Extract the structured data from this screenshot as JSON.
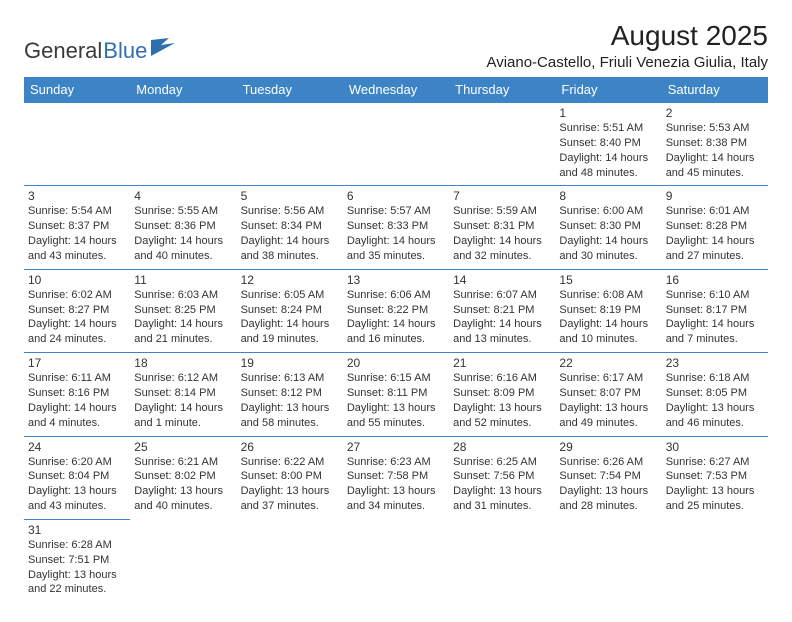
{
  "logo": {
    "text1": "General",
    "text2": "Blue"
  },
  "title": "August 2025",
  "location": "Aviano-Castello, Friuli Venezia Giulia, Italy",
  "colors": {
    "header_bg": "#3d84c6",
    "header_text": "#ffffff",
    "cell_border": "#3d84c6",
    "logo_blue": "#2f6fb0",
    "text": "#333333",
    "background": "#ffffff"
  },
  "weekdays": [
    "Sunday",
    "Monday",
    "Tuesday",
    "Wednesday",
    "Thursday",
    "Friday",
    "Saturday"
  ],
  "weeks": [
    [
      null,
      null,
      null,
      null,
      null,
      {
        "d": "1",
        "sr": "Sunrise: 5:51 AM",
        "ss": "Sunset: 8:40 PM",
        "dl1": "Daylight: 14 hours",
        "dl2": "and 48 minutes."
      },
      {
        "d": "2",
        "sr": "Sunrise: 5:53 AM",
        "ss": "Sunset: 8:38 PM",
        "dl1": "Daylight: 14 hours",
        "dl2": "and 45 minutes."
      }
    ],
    [
      {
        "d": "3",
        "sr": "Sunrise: 5:54 AM",
        "ss": "Sunset: 8:37 PM",
        "dl1": "Daylight: 14 hours",
        "dl2": "and 43 minutes."
      },
      {
        "d": "4",
        "sr": "Sunrise: 5:55 AM",
        "ss": "Sunset: 8:36 PM",
        "dl1": "Daylight: 14 hours",
        "dl2": "and 40 minutes."
      },
      {
        "d": "5",
        "sr": "Sunrise: 5:56 AM",
        "ss": "Sunset: 8:34 PM",
        "dl1": "Daylight: 14 hours",
        "dl2": "and 38 minutes."
      },
      {
        "d": "6",
        "sr": "Sunrise: 5:57 AM",
        "ss": "Sunset: 8:33 PM",
        "dl1": "Daylight: 14 hours",
        "dl2": "and 35 minutes."
      },
      {
        "d": "7",
        "sr": "Sunrise: 5:59 AM",
        "ss": "Sunset: 8:31 PM",
        "dl1": "Daylight: 14 hours",
        "dl2": "and 32 minutes."
      },
      {
        "d": "8",
        "sr": "Sunrise: 6:00 AM",
        "ss": "Sunset: 8:30 PM",
        "dl1": "Daylight: 14 hours",
        "dl2": "and 30 minutes."
      },
      {
        "d": "9",
        "sr": "Sunrise: 6:01 AM",
        "ss": "Sunset: 8:28 PM",
        "dl1": "Daylight: 14 hours",
        "dl2": "and 27 minutes."
      }
    ],
    [
      {
        "d": "10",
        "sr": "Sunrise: 6:02 AM",
        "ss": "Sunset: 8:27 PM",
        "dl1": "Daylight: 14 hours",
        "dl2": "and 24 minutes."
      },
      {
        "d": "11",
        "sr": "Sunrise: 6:03 AM",
        "ss": "Sunset: 8:25 PM",
        "dl1": "Daylight: 14 hours",
        "dl2": "and 21 minutes."
      },
      {
        "d": "12",
        "sr": "Sunrise: 6:05 AM",
        "ss": "Sunset: 8:24 PM",
        "dl1": "Daylight: 14 hours",
        "dl2": "and 19 minutes."
      },
      {
        "d": "13",
        "sr": "Sunrise: 6:06 AM",
        "ss": "Sunset: 8:22 PM",
        "dl1": "Daylight: 14 hours",
        "dl2": "and 16 minutes."
      },
      {
        "d": "14",
        "sr": "Sunrise: 6:07 AM",
        "ss": "Sunset: 8:21 PM",
        "dl1": "Daylight: 14 hours",
        "dl2": "and 13 minutes."
      },
      {
        "d": "15",
        "sr": "Sunrise: 6:08 AM",
        "ss": "Sunset: 8:19 PM",
        "dl1": "Daylight: 14 hours",
        "dl2": "and 10 minutes."
      },
      {
        "d": "16",
        "sr": "Sunrise: 6:10 AM",
        "ss": "Sunset: 8:17 PM",
        "dl1": "Daylight: 14 hours",
        "dl2": "and 7 minutes."
      }
    ],
    [
      {
        "d": "17",
        "sr": "Sunrise: 6:11 AM",
        "ss": "Sunset: 8:16 PM",
        "dl1": "Daylight: 14 hours",
        "dl2": "and 4 minutes."
      },
      {
        "d": "18",
        "sr": "Sunrise: 6:12 AM",
        "ss": "Sunset: 8:14 PM",
        "dl1": "Daylight: 14 hours",
        "dl2": "and 1 minute."
      },
      {
        "d": "19",
        "sr": "Sunrise: 6:13 AM",
        "ss": "Sunset: 8:12 PM",
        "dl1": "Daylight: 13 hours",
        "dl2": "and 58 minutes."
      },
      {
        "d": "20",
        "sr": "Sunrise: 6:15 AM",
        "ss": "Sunset: 8:11 PM",
        "dl1": "Daylight: 13 hours",
        "dl2": "and 55 minutes."
      },
      {
        "d": "21",
        "sr": "Sunrise: 6:16 AM",
        "ss": "Sunset: 8:09 PM",
        "dl1": "Daylight: 13 hours",
        "dl2": "and 52 minutes."
      },
      {
        "d": "22",
        "sr": "Sunrise: 6:17 AM",
        "ss": "Sunset: 8:07 PM",
        "dl1": "Daylight: 13 hours",
        "dl2": "and 49 minutes."
      },
      {
        "d": "23",
        "sr": "Sunrise: 6:18 AM",
        "ss": "Sunset: 8:05 PM",
        "dl1": "Daylight: 13 hours",
        "dl2": "and 46 minutes."
      }
    ],
    [
      {
        "d": "24",
        "sr": "Sunrise: 6:20 AM",
        "ss": "Sunset: 8:04 PM",
        "dl1": "Daylight: 13 hours",
        "dl2": "and 43 minutes."
      },
      {
        "d": "25",
        "sr": "Sunrise: 6:21 AM",
        "ss": "Sunset: 8:02 PM",
        "dl1": "Daylight: 13 hours",
        "dl2": "and 40 minutes."
      },
      {
        "d": "26",
        "sr": "Sunrise: 6:22 AM",
        "ss": "Sunset: 8:00 PM",
        "dl1": "Daylight: 13 hours",
        "dl2": "and 37 minutes."
      },
      {
        "d": "27",
        "sr": "Sunrise: 6:23 AM",
        "ss": "Sunset: 7:58 PM",
        "dl1": "Daylight: 13 hours",
        "dl2": "and 34 minutes."
      },
      {
        "d": "28",
        "sr": "Sunrise: 6:25 AM",
        "ss": "Sunset: 7:56 PM",
        "dl1": "Daylight: 13 hours",
        "dl2": "and 31 minutes."
      },
      {
        "d": "29",
        "sr": "Sunrise: 6:26 AM",
        "ss": "Sunset: 7:54 PM",
        "dl1": "Daylight: 13 hours",
        "dl2": "and 28 minutes."
      },
      {
        "d": "30",
        "sr": "Sunrise: 6:27 AM",
        "ss": "Sunset: 7:53 PM",
        "dl1": "Daylight: 13 hours",
        "dl2": "and 25 minutes."
      }
    ],
    [
      {
        "d": "31",
        "sr": "Sunrise: 6:28 AM",
        "ss": "Sunset: 7:51 PM",
        "dl1": "Daylight: 13 hours",
        "dl2": "and 22 minutes."
      },
      null,
      null,
      null,
      null,
      null,
      null
    ]
  ]
}
